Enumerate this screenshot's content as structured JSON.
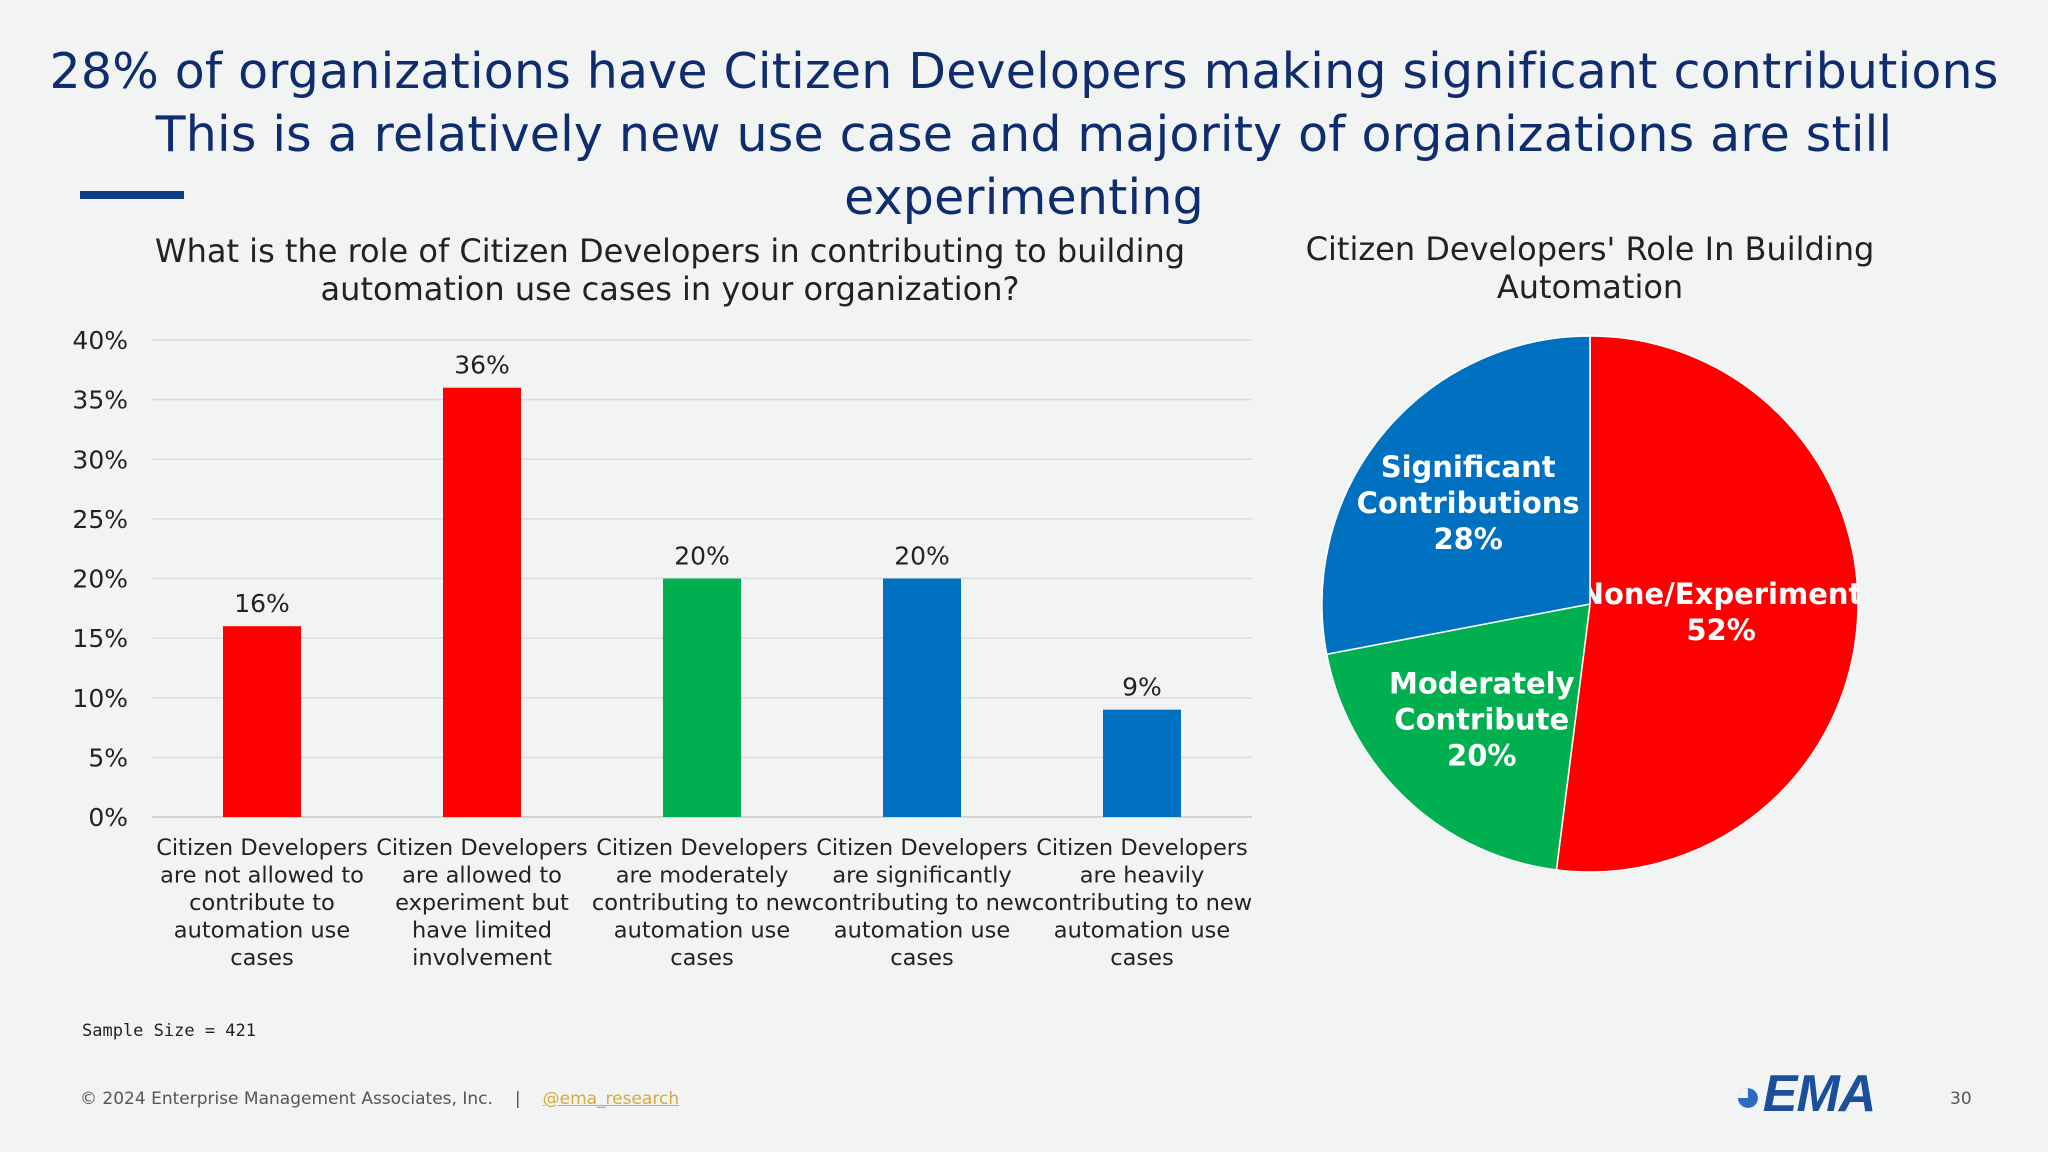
{
  "slide": {
    "headline_line1": "28% of organizations have Citizen Developers making significant contributions",
    "headline_line2": "This is a relatively new use case and majority of organizations are still experimenting",
    "sample_size": "Sample Size = 421",
    "copyright": "© 2024 Enterprise Management Associates, Inc.",
    "separator": "|",
    "handle": "@ema_research",
    "logo_text": "EMA",
    "page_number": "30"
  },
  "chart_data": [
    {
      "type": "bar",
      "title_line1": "What is the role of Citizen Developers in contributing to building",
      "title_line2": "automation use cases in your organization?",
      "categories": [
        [
          "Citizen Developers",
          "are not allowed to",
          "contribute to",
          "automation use",
          "cases"
        ],
        [
          "Citizen Developers",
          "are allowed to",
          "experiment but",
          "have limited",
          "involvement"
        ],
        [
          "Citizen Developers",
          "are moderately",
          "contributing to new",
          "automation use",
          "cases"
        ],
        [
          "Citizen Developers",
          "are significantly",
          "contributing to new",
          "automation use",
          "cases"
        ],
        [
          "Citizen Developers",
          "are heavily",
          "contributing to new",
          "automation use",
          "cases"
        ]
      ],
      "values": [
        16,
        36,
        20,
        20,
        9
      ],
      "value_labels": [
        "16%",
        "36%",
        "20%",
        "20%",
        "9%"
      ],
      "colors": [
        "#ff0000",
        "#ff0000",
        "#00b050",
        "#0070c0",
        "#0070c0"
      ],
      "ylim": [
        0,
        40
      ],
      "yticks": [
        "0%",
        "5%",
        "10%",
        "15%",
        "20%",
        "25%",
        "30%",
        "35%",
        "40%"
      ],
      "grid": true
    },
    {
      "type": "pie",
      "title": "Citizen Developers' Role In Building Automation",
      "slices": [
        {
          "label_line1": "None/Experiment",
          "label_line2": "52%",
          "value": 52,
          "color": "#ff0000"
        },
        {
          "label_line1": "Moderately",
          "label_line2": "Contribute",
          "label_line3": "20%",
          "value": 20,
          "color": "#00b050"
        },
        {
          "label_line1": "Significant",
          "label_line2": "Contributions",
          "label_line3": "28%",
          "value": 28,
          "color": "#0070c0"
        }
      ]
    }
  ]
}
